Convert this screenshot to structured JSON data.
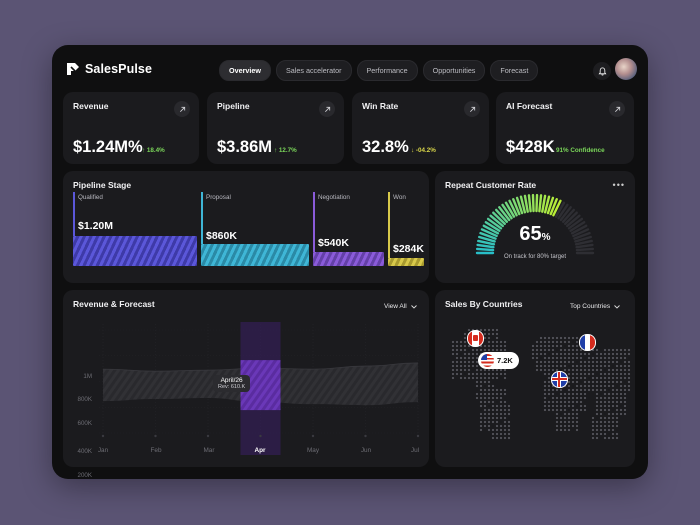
{
  "app": {
    "name": "SalesPulse"
  },
  "tabs": [
    {
      "label": "Overview",
      "active": true
    },
    {
      "label": "Sales accelerator",
      "active": false
    },
    {
      "label": "Performance",
      "active": false
    },
    {
      "label": "Opportunities",
      "active": false
    },
    {
      "label": "Forecast",
      "active": false
    }
  ],
  "kpis": [
    {
      "title": "Revenue",
      "value": "$1.24M%",
      "delta": "↑ 18.4%",
      "delta_color": "#7bd65a"
    },
    {
      "title": "Pipeline",
      "value": "$3.86M",
      "delta": "↑ 12.7%",
      "delta_color": "#7bd65a"
    },
    {
      "title": "Win Rate",
      "value": "32.8%",
      "delta": "↓ -04.2%",
      "delta_color": "#d9d64a"
    },
    {
      "title": "AI Forecast",
      "value": "$428K",
      "delta": "91% Confidence",
      "delta_color": "#7bd65a"
    }
  ],
  "pipeline": {
    "title": "Pipeline Stage",
    "stages": [
      {
        "label": "Qualified",
        "value": "$1.20M",
        "color": "#5b57d9"
      },
      {
        "label": "Proposal",
        "value": "$860K",
        "color": "#3fb6d6"
      },
      {
        "label": "Negotiation",
        "value": "$540K",
        "color": "#8a5bd9"
      },
      {
        "label": "Won",
        "value": "$284K",
        "color": "#d8c94a"
      }
    ]
  },
  "repeat": {
    "title": "Repeat Customer Rate",
    "value": "65",
    "unit": "%",
    "note": "On track for 80% target",
    "percent": 65,
    "more": "•••"
  },
  "revenue": {
    "title": "Revenue & Forecast",
    "dropdown": "View All",
    "tooltip_date": "April/26",
    "tooltip_value": "Rev: 610.K"
  },
  "countries": {
    "title": "Sales By Countries",
    "dropdown": "Top Countries",
    "us_value": "7.2K"
  },
  "chart_data": {
    "type": "area",
    "title": "Revenue & Forecast",
    "categories": [
      "Jan",
      "Feb",
      "Mar",
      "Apr",
      "May",
      "Jun",
      "Jul"
    ],
    "active_category": "Apr",
    "y_ticks": [
      "0",
      "200K",
      "400K",
      "600K",
      "800K",
      "1M"
    ],
    "ylim": [
      0,
      1000000
    ],
    "series": [
      {
        "values": [
          0.62,
          0.6,
          0.61,
          0.63,
          0.62,
          0.65,
          0.68
        ]
      },
      {
        "values": [
          0.31,
          0.33,
          0.34,
          0.3,
          0.28,
          0.27,
          0.3
        ]
      }
    ]
  },
  "icons": {
    "logo": "salespulse-logo-icon",
    "bell": "bell-icon",
    "arrow": "arrow-up-right-icon",
    "chevron": "chevron-down-icon"
  }
}
